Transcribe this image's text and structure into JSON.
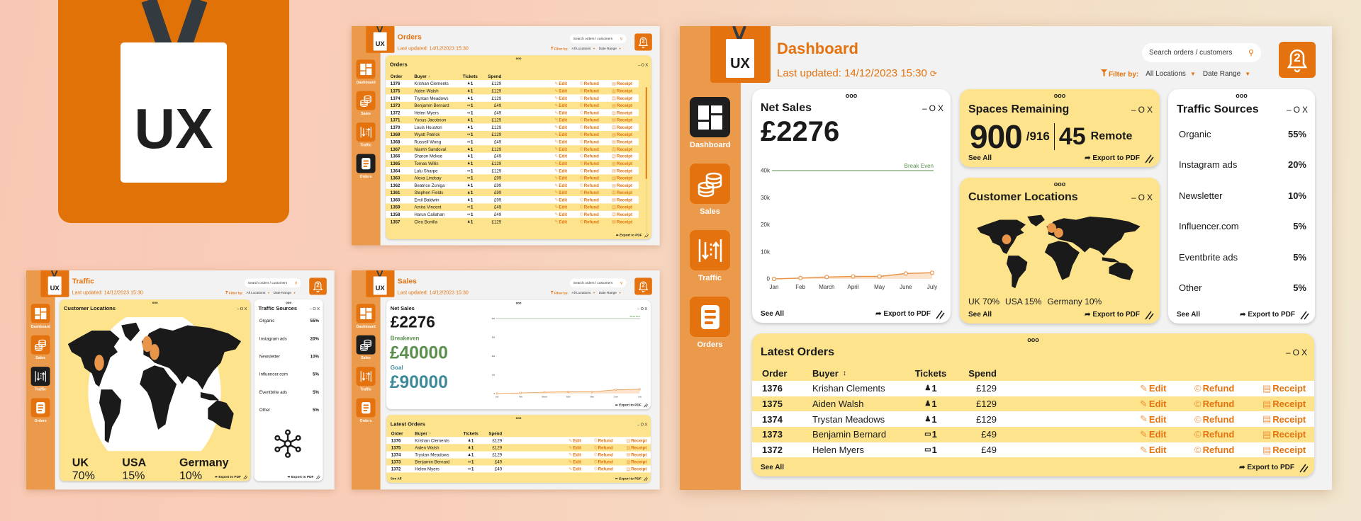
{
  "brand": {
    "logo_text": "UX"
  },
  "header": {
    "last_updated": "Last updated: 14/12/2023 15:30",
    "search_placeholder": "Search orders / customers",
    "filter_label": "Filter by:",
    "location_filter": "All Locations",
    "date_filter": "Date Range",
    "notification_count": "2"
  },
  "nav": [
    {
      "label": "Dashboard",
      "icon": "dashboard-grid-icon"
    },
    {
      "label": "Sales",
      "icon": "coins-stack-icon"
    },
    {
      "label": "Traffic",
      "icon": "traffic-arrows-icon"
    },
    {
      "label": "Orders",
      "icon": "document-list-icon"
    }
  ],
  "screens": {
    "dashboard": {
      "title": "Dashboard",
      "active": "Dashboard"
    },
    "orders": {
      "title": "Orders",
      "active": "Orders"
    },
    "traffic": {
      "title": "Traffic",
      "active": "Traffic"
    },
    "sales": {
      "title": "Sales",
      "active": "Sales"
    }
  },
  "card_ui": {
    "drag_handle": "ooo",
    "minimize": "–",
    "maximize": "O",
    "close": "X",
    "see_all": "See All",
    "export": "Export to PDF"
  },
  "net_sales": {
    "title": "Net Sales",
    "value": "£2276",
    "breakeven_label": "Breakeven",
    "breakeven_value": "£40000",
    "goal_label": "Goal",
    "goal_value": "£90000"
  },
  "spaces": {
    "title": "Spaces Remaining",
    "remaining": "900",
    "capacity": "/916",
    "remote_count": "45",
    "remote_label": "Remote"
  },
  "locations": {
    "title": "Customer Locations",
    "stats": [
      {
        "country": "UK",
        "percent": "70%"
      },
      {
        "country": "USA",
        "percent": "15%"
      },
      {
        "country": "Germany",
        "percent": "10%"
      }
    ]
  },
  "traffic_sources": {
    "title": "Traffic Sources",
    "items": [
      {
        "label": "Organic",
        "value": "55%"
      },
      {
        "label": "Instagram ads",
        "value": "20%"
      },
      {
        "label": "Newsletter",
        "value": "10%"
      },
      {
        "label": "Influencer.com",
        "value": "5%"
      },
      {
        "label": "Eventbrite ads",
        "value": "5%"
      },
      {
        "label": "Other",
        "value": "5%"
      }
    ]
  },
  "orders": {
    "latest_title": "Latest Orders",
    "all_title": "Orders",
    "columns": {
      "order": "Order",
      "buyer": "Buyer",
      "tickets": "Tickets",
      "spend": "Spend"
    },
    "actions": {
      "edit": "Edit",
      "refund": "Refund",
      "receipt": "Receipt"
    },
    "rows": [
      {
        "order": "1376",
        "buyer": "Krishan Clements",
        "ticket_type": "in-person",
        "tickets": "1",
        "spend": "£129"
      },
      {
        "order": "1375",
        "buyer": "Aiden Walsh",
        "ticket_type": "in-person",
        "tickets": "1",
        "spend": "£129"
      },
      {
        "order": "1374",
        "buyer": "Trystan Meadows",
        "ticket_type": "in-person",
        "tickets": "1",
        "spend": "£129"
      },
      {
        "order": "1373",
        "buyer": "Benjamin Bernard",
        "ticket_type": "remote",
        "tickets": "1",
        "spend": "£49"
      },
      {
        "order": "1372",
        "buyer": "Helen Myers",
        "ticket_type": "remote",
        "tickets": "1",
        "spend": "£49"
      },
      {
        "order": "1371",
        "buyer": "Yunus Jacobson",
        "ticket_type": "in-person",
        "tickets": "1",
        "spend": "£129"
      },
      {
        "order": "1370",
        "buyer": "Louis Houston",
        "ticket_type": "in-person",
        "tickets": "1",
        "spend": "£129"
      },
      {
        "order": "1369",
        "buyer": "Wyatt Patrick",
        "ticket_type": "remote",
        "tickets": "1",
        "spend": "£129"
      },
      {
        "order": "1368",
        "buyer": "Russell Wong",
        "ticket_type": "remote",
        "tickets": "1",
        "spend": "£49"
      },
      {
        "order": "1367",
        "buyer": "Niamh Sandoval",
        "ticket_type": "in-person",
        "tickets": "1",
        "spend": "£129"
      },
      {
        "order": "1366",
        "buyer": "Sharon Mckee",
        "ticket_type": "in-person",
        "tickets": "1",
        "spend": "£49"
      },
      {
        "order": "1365",
        "buyer": "Tomas Willis",
        "ticket_type": "in-person",
        "tickets": "1",
        "spend": "£129"
      },
      {
        "order": "1364",
        "buyer": "Lulu Sharpe",
        "ticket_type": "remote",
        "tickets": "1",
        "spend": "£129"
      },
      {
        "order": "1363",
        "buyer": "Alexa Lindsay",
        "ticket_type": "remote",
        "tickets": "1",
        "spend": "£99"
      },
      {
        "order": "1362",
        "buyer": "Beatrice Zuniga",
        "ticket_type": "in-person",
        "tickets": "1",
        "spend": "£99"
      },
      {
        "order": "1361",
        "buyer": "Stephen Fields",
        "ticket_type": "in-person",
        "tickets": "1",
        "spend": "£99"
      },
      {
        "order": "1360",
        "buyer": "Emil Baldwin",
        "ticket_type": "in-person",
        "tickets": "1",
        "spend": "£99"
      },
      {
        "order": "1359",
        "buyer": "Amira Vincent",
        "ticket_type": "remote",
        "tickets": "1",
        "spend": "£49"
      },
      {
        "order": "1358",
        "buyer": "Harun Callahan",
        "ticket_type": "remote",
        "tickets": "1",
        "spend": "£49"
      },
      {
        "order": "1357",
        "buyer": "Cleo Bonilla",
        "ticket_type": "in-person",
        "tickets": "1",
        "spend": "£129"
      }
    ]
  },
  "colors": {
    "brand_orange": "#e4730f",
    "sidebar_orange": "#eb9a4c",
    "card_yellow": "#fde38c",
    "breakeven_green": "#5b8f4e",
    "goal_teal": "#3f8a9a",
    "active_nav": "#1e1e1e"
  },
  "chart_data": {
    "type": "line",
    "categories": [
      "Jan",
      "Feb",
      "March",
      "April",
      "May",
      "June",
      "July"
    ],
    "values": [
      0,
      300,
      700,
      900,
      900,
      2000,
      2276
    ],
    "ylim": [
      0,
      40000
    ],
    "y_ticks": [
      {
        "value": 0,
        "label": "0"
      },
      {
        "value": 10000,
        "label": "10k"
      },
      {
        "value": 20000,
        "label": "20k"
      },
      {
        "value": 30000,
        "label": "30k"
      },
      {
        "value": 40000,
        "label": "40k"
      }
    ],
    "reference_line": {
      "label": "Break Even",
      "value": 40000
    },
    "grid": false
  }
}
